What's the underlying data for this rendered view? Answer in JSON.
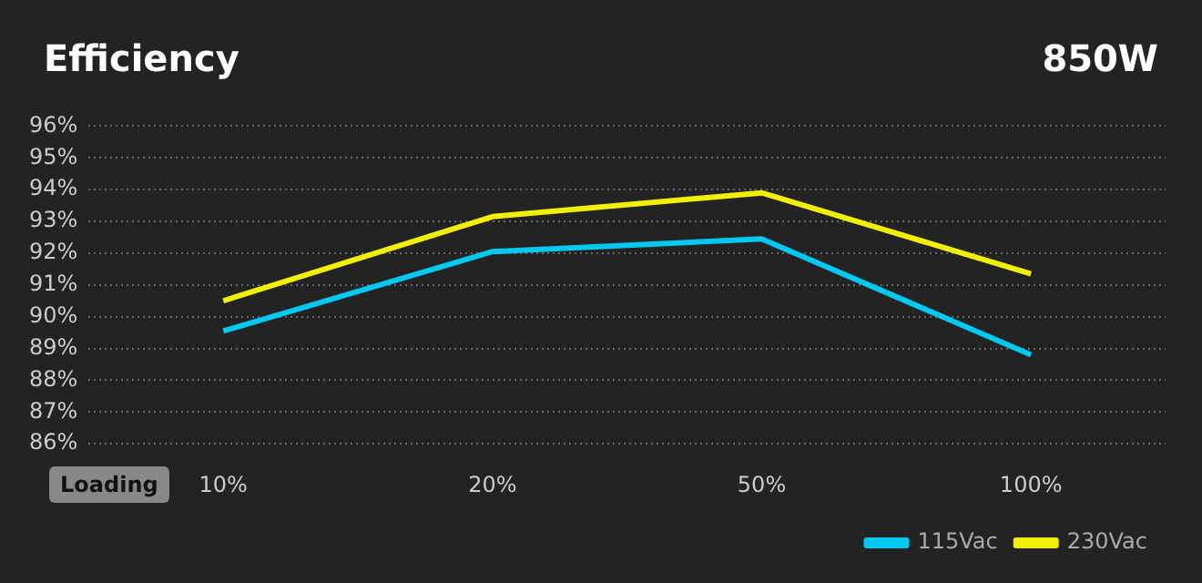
{
  "chart_data": {
    "type": "line",
    "title": "Efficiency",
    "subtitle": "850W",
    "xlabel": "Loading",
    "categories": [
      "10%",
      "20%",
      "50%",
      "100%"
    ],
    "series": [
      {
        "name": "115Vac",
        "color": "#00c8f0",
        "values": [
          89.55,
          92.05,
          92.45,
          88.8
        ]
      },
      {
        "name": "230Vac",
        "color": "#f0f000",
        "values": [
          90.5,
          93.15,
          93.9,
          91.35
        ]
      }
    ],
    "ylim": [
      86,
      96
    ],
    "yticks": [
      {
        "value": 86,
        "label": "86%"
      },
      {
        "value": 87,
        "label": "87%"
      },
      {
        "value": 88,
        "label": "88%"
      },
      {
        "value": 89,
        "label": "89%"
      },
      {
        "value": 90,
        "label": "90%"
      },
      {
        "value": 91,
        "label": "91%"
      },
      {
        "value": 92,
        "label": "92%"
      },
      {
        "value": 93,
        "label": "93%"
      },
      {
        "value": 94,
        "label": "94%"
      },
      {
        "value": 95,
        "label": "95%"
      },
      {
        "value": 96,
        "label": "96%"
      }
    ],
    "grid": "y",
    "legend": "bottom right",
    "marker": "none",
    "line_style": "solid"
  }
}
